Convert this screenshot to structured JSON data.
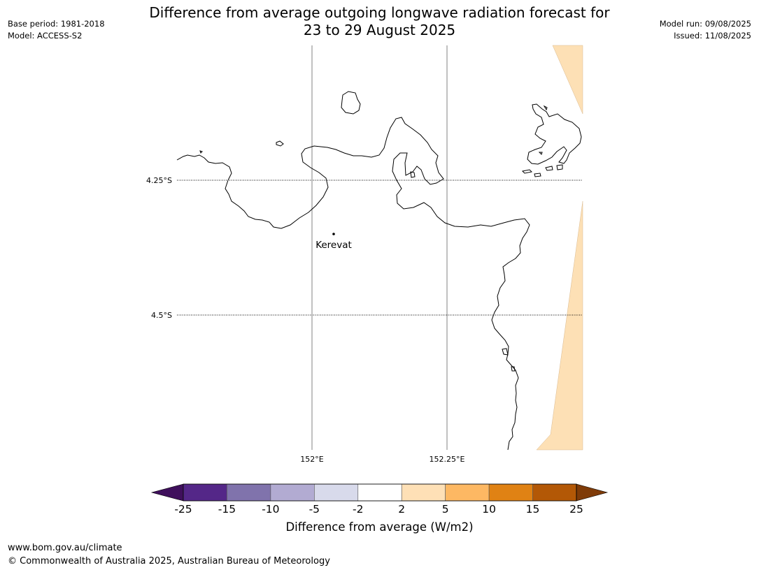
{
  "title_line1": "Difference from average outgoing longwave radiation forecast for",
  "title_line2": "23 to 29 August 2025",
  "meta_left": {
    "base_period": "Base period: 1981-2018",
    "model": "Model: ACCESS-S2"
  },
  "meta_right": {
    "model_run": "Model run: 09/08/2025",
    "issued": "Issued: 11/08/2025"
  },
  "map": {
    "lat_labels": [
      "4.25°S",
      "4.5°S"
    ],
    "lon_labels": [
      "152°E",
      "152.25°E"
    ],
    "place": "Kerevat",
    "anomaly_fill_color": "#fde0b5"
  },
  "colorbar": {
    "label": "Difference from average (W/m2)",
    "ticks": [
      "-25",
      "-15",
      "-10",
      "-5",
      "-2",
      "2",
      "5",
      "10",
      "15",
      "25"
    ],
    "colors": [
      "#3f0f5c",
      "#542788",
      "#8073ac",
      "#b2abd2",
      "#d8daeb",
      "#ffffff",
      "#fee0b6",
      "#fdb863",
      "#e08214",
      "#b35806",
      "#7f3b08"
    ]
  },
  "footer": {
    "url": "www.bom.gov.au/climate",
    "copyright": "© Commonwealth of Australia 2025, Australian Bureau of Meteorology"
  }
}
